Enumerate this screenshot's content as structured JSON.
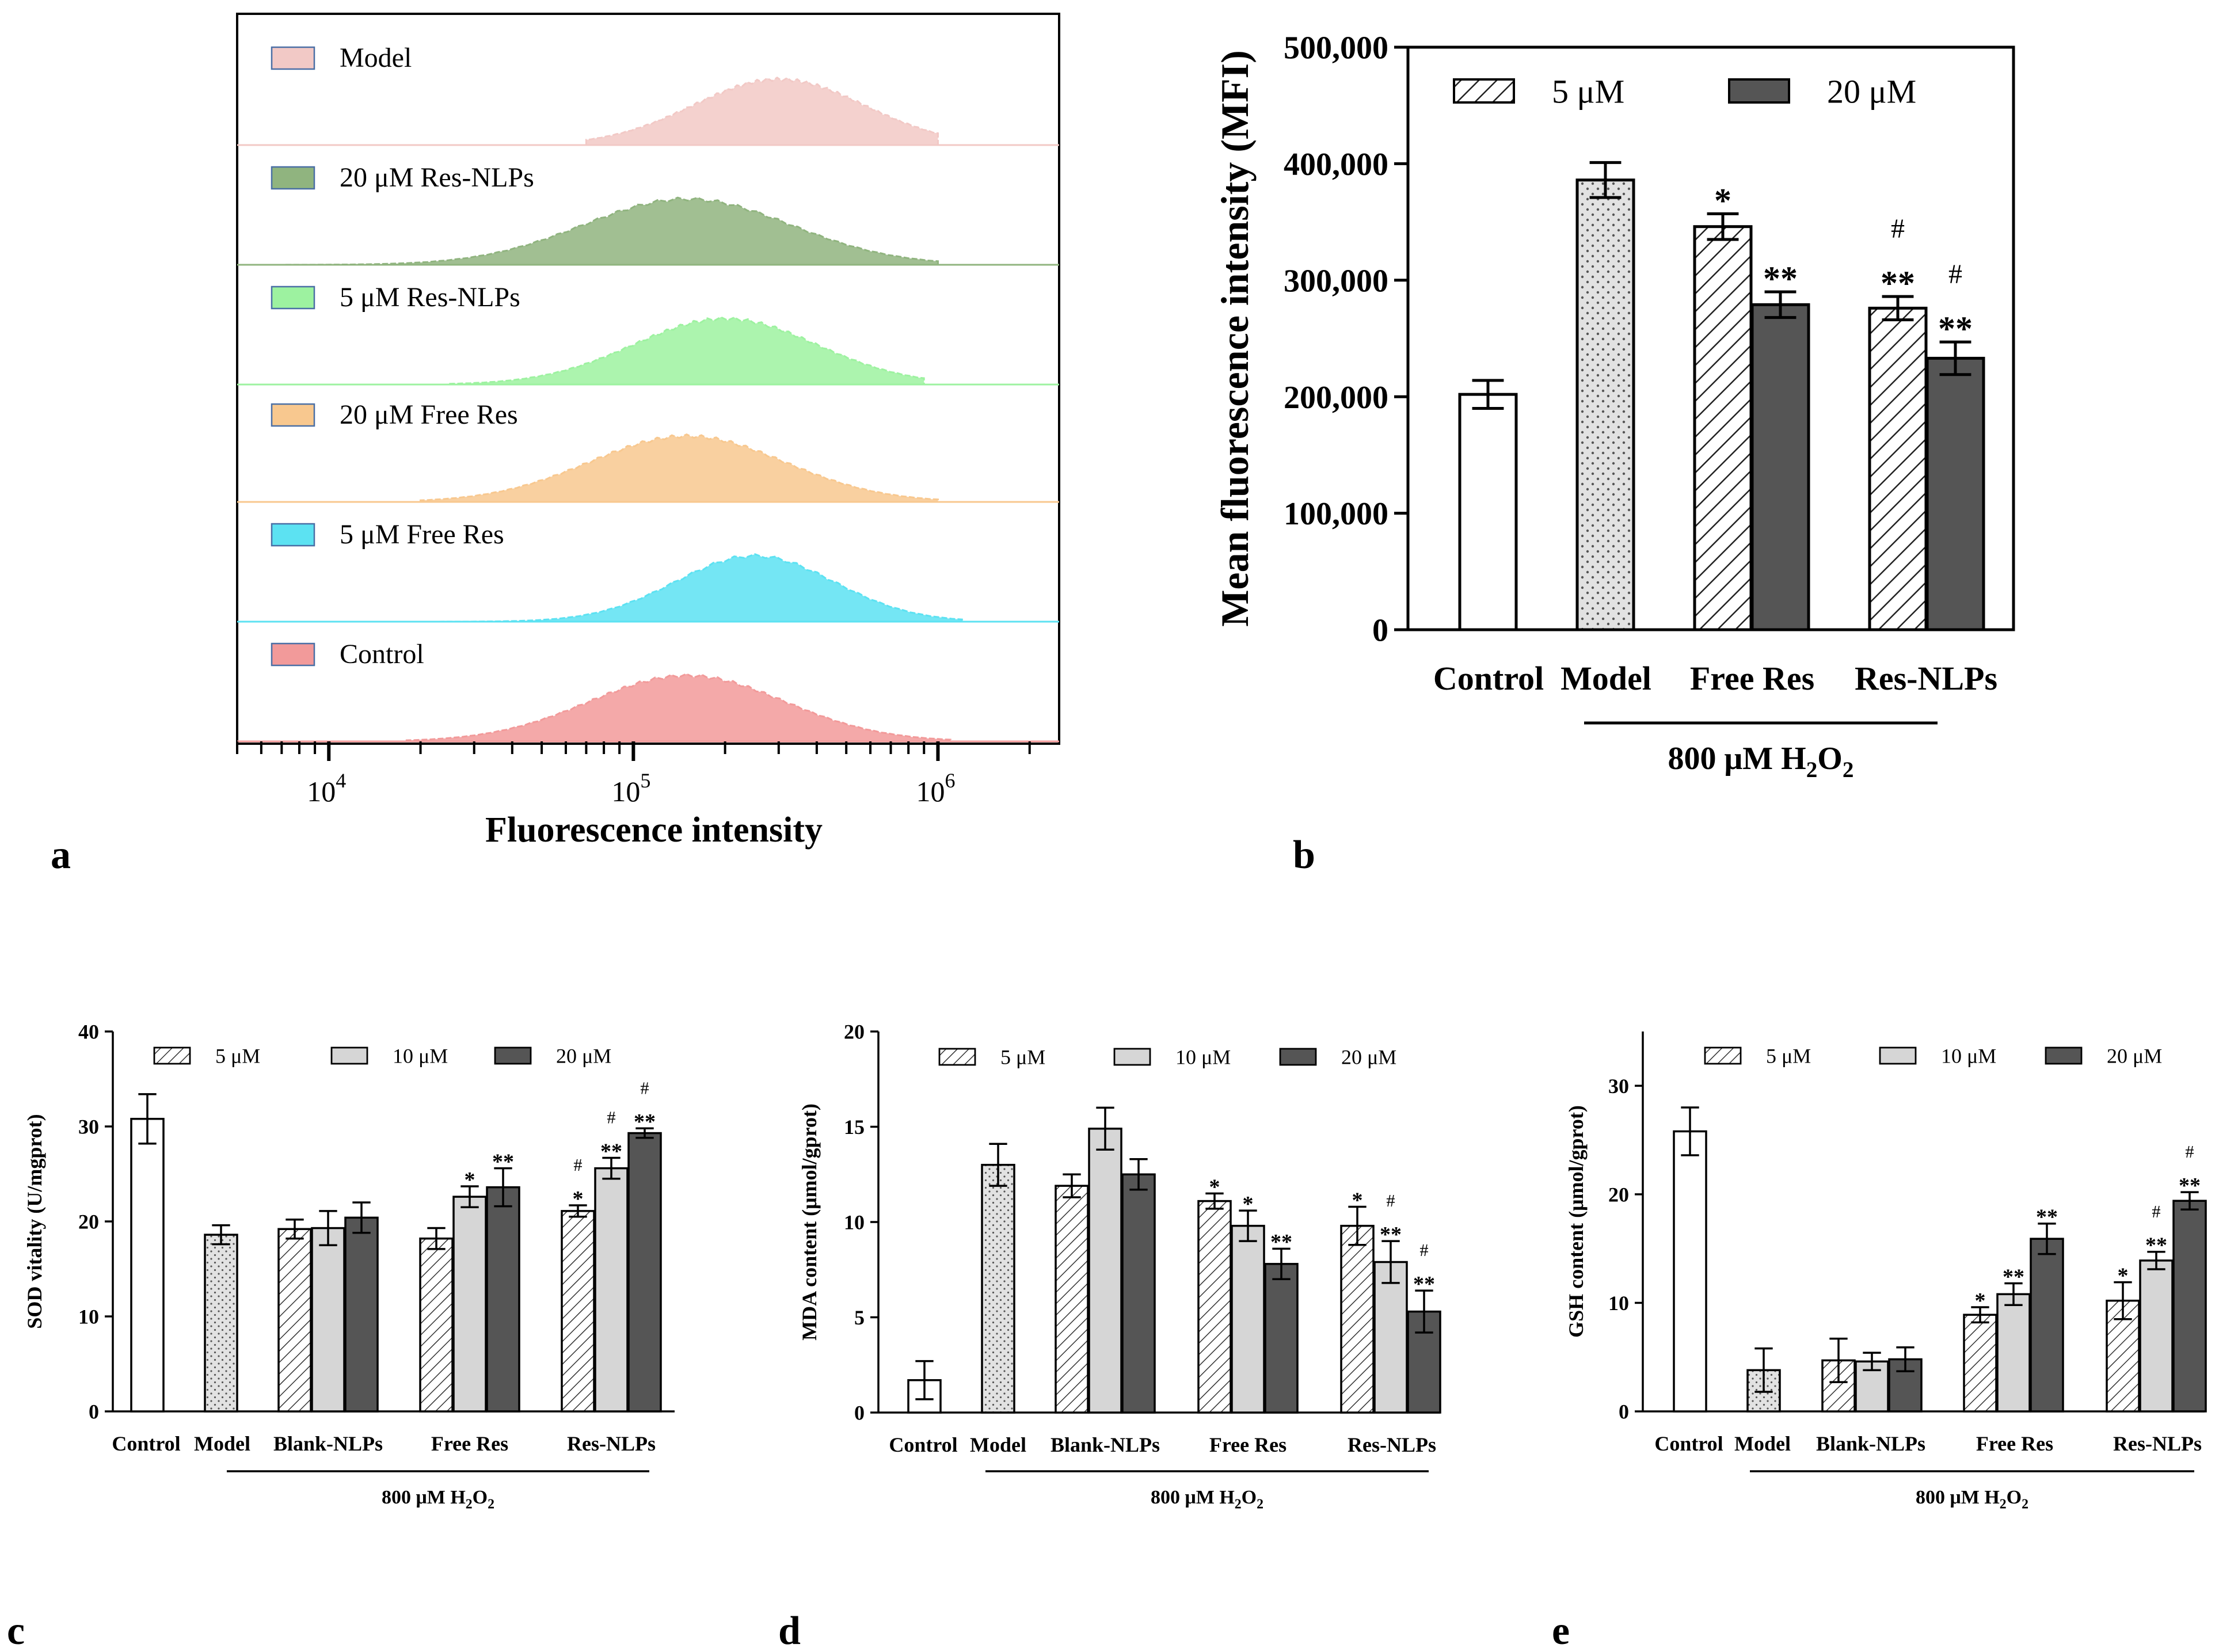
{
  "colors": {
    "hist_model": "#f2c9c6",
    "hist_20_nlp": "#90b47f",
    "hist_5_nlp": "#9df2a0",
    "hist_20_free": "#f8c88f",
    "hist_5_free": "#5ce2f2",
    "hist_control": "#f29a9a",
    "bar_dark": "#555555",
    "bar_light": "#d6d6d6",
    "bar_dotted_bg": "#e2e2e2",
    "axis": "#000000"
  },
  "chart_data": [
    {
      "id": "a",
      "type": "histogram",
      "panel_label": "a",
      "xlabel": "Fluorescence intensity",
      "xscale": "log",
      "xlim": [
        5000,
        2500000
      ],
      "x_ticks": [
        {
          "base": "10",
          "exp": "4",
          "value": 10000
        },
        {
          "base": "10",
          "exp": "5",
          "value": 100000
        },
        {
          "base": "10",
          "exp": "6",
          "value": 1000000
        }
      ],
      "series": [
        {
          "name": "Model",
          "color_key": "hist_model",
          "start": 70000,
          "end": 1000000,
          "peak": 300000,
          "width": 0.28,
          "height": 0.55
        },
        {
          "name": "20 μM Res-NLPs",
          "color_key": "hist_20_nlp",
          "start": 5000,
          "end": 1000000,
          "peak": 150000,
          "width": 0.34,
          "height": 0.55
        },
        {
          "name": "5 μM Res-NLPs",
          "color_key": "hist_5_nlp",
          "start": 25000,
          "end": 900000,
          "peak": 200000,
          "width": 0.3,
          "height": 0.55
        },
        {
          "name": "20 μM Free Res",
          "color_key": "hist_20_free",
          "start": 20000,
          "end": 1000000,
          "peak": 150000,
          "width": 0.32,
          "height": 0.55
        },
        {
          "name": "5 μM Free Res",
          "color_key": "hist_5_free",
          "start": 5000,
          "end": 1200000,
          "peak": 250000,
          "width": 0.26,
          "height": 0.55
        },
        {
          "name": "Control",
          "color_key": "hist_control",
          "start": 18000,
          "end": 1100000,
          "peak": 150000,
          "width": 0.32,
          "height": 0.55
        }
      ]
    },
    {
      "id": "b",
      "type": "bar",
      "panel_label": "b",
      "ylabel": "Mean fluorescence intensity (MFI)",
      "ylim": [
        0,
        500000
      ],
      "yticks": [
        0,
        100000,
        200000,
        300000,
        400000,
        500000
      ],
      "ytick_labels": [
        "0",
        "100,000",
        "200,000",
        "300,000",
        "400,000",
        "500,000"
      ],
      "categories": [
        "Control",
        "Model",
        "Free Res",
        "Res-NLPs"
      ],
      "legend": [
        "5 μM",
        "20 μM"
      ],
      "treatment_label": {
        "prefix": "800 μM H",
        "sub1": "2",
        "mid": "O",
        "sub2": "2"
      },
      "bars": [
        {
          "group": "Control",
          "style": "white",
          "value": 202000,
          "err": 12000,
          "ann": []
        },
        {
          "group": "Model",
          "style": "dotted",
          "value": 386000,
          "err": 15000,
          "ann": []
        },
        {
          "group": "Free Res",
          "series": "5 μM",
          "style": "hatch",
          "value": 346000,
          "err": 11000,
          "ann": [
            "*"
          ]
        },
        {
          "group": "Free Res",
          "series": "20 μM",
          "style": "dark",
          "value": 279000,
          "err": 11000,
          "ann": [
            "**"
          ]
        },
        {
          "group": "Res-NLPs",
          "series": "5 μM",
          "style": "hatch",
          "value": 276000,
          "err": 10000,
          "ann": [
            "**",
            "#"
          ]
        },
        {
          "group": "Res-NLPs",
          "series": "20 μM",
          "style": "dark",
          "value": 233000,
          "err": 14000,
          "ann": [
            "**",
            "#"
          ]
        }
      ]
    },
    {
      "id": "c",
      "type": "bar",
      "panel_label": "c",
      "ylabel": "SOD vitality (U/mgprot)",
      "ylim": [
        0,
        40
      ],
      "yticks": [
        0,
        10,
        20,
        30,
        40
      ],
      "ytick_labels": [
        "0",
        "10",
        "20",
        "30",
        "40"
      ],
      "categories": [
        "Control",
        "Model",
        "Blank-NLPs",
        "Free Res",
        "Res-NLPs"
      ],
      "legend": [
        "5 μM",
        "10 μM",
        "20 μM"
      ],
      "treatment_label": {
        "prefix": "800 μM H",
        "sub1": "2",
        "mid": "O",
        "sub2": "2"
      },
      "bars": [
        {
          "group": "Control",
          "style": "white",
          "value": 30.8,
          "err": 2.6,
          "ann": []
        },
        {
          "group": "Model",
          "style": "dotted",
          "value": 18.6,
          "err": 1.0,
          "ann": []
        },
        {
          "group": "Blank-NLPs",
          "series": "5 μM",
          "style": "hatch",
          "value": 19.2,
          "err": 1.0,
          "ann": []
        },
        {
          "group": "Blank-NLPs",
          "series": "10 μM",
          "style": "light",
          "value": 19.3,
          "err": 1.8,
          "ann": []
        },
        {
          "group": "Blank-NLPs",
          "series": "20 μM",
          "style": "dark",
          "value": 20.4,
          "err": 1.6,
          "ann": []
        },
        {
          "group": "Free Res",
          "series": "5 μM",
          "style": "hatch",
          "value": 18.2,
          "err": 1.1,
          "ann": []
        },
        {
          "group": "Free Res",
          "series": "10 μM",
          "style": "light",
          "value": 22.6,
          "err": 1.1,
          "ann": [
            "*"
          ]
        },
        {
          "group": "Free Res",
          "series": "20 μM",
          "style": "dark",
          "value": 23.6,
          "err": 2.0,
          "ann": [
            "**"
          ]
        },
        {
          "group": "Res-NLPs",
          "series": "5 μM",
          "style": "hatch",
          "value": 21.1,
          "err": 0.6,
          "ann": [
            "*",
            "#"
          ]
        },
        {
          "group": "Res-NLPs",
          "series": "10 μM",
          "style": "light",
          "value": 25.6,
          "err": 1.1,
          "ann": [
            "**",
            "#"
          ]
        },
        {
          "group": "Res-NLPs",
          "series": "20 μM",
          "style": "dark",
          "value": 29.3,
          "err": 0.5,
          "ann": [
            "**",
            "#"
          ]
        }
      ]
    },
    {
      "id": "d",
      "type": "bar",
      "panel_label": "d",
      "ylabel": "MDA content (μmol/gprot)",
      "ylim": [
        0,
        20
      ],
      "yticks": [
        0,
        5,
        10,
        15,
        20
      ],
      "ytick_labels": [
        "0",
        "5",
        "10",
        "15",
        "20"
      ],
      "categories": [
        "Control",
        "Model",
        "Blank-NLPs",
        "Free Res",
        "Res-NLPs"
      ],
      "legend": [
        "5 μM",
        "10 μM",
        "20 μM"
      ],
      "treatment_label": {
        "prefix": "800 μM H",
        "sub1": "2",
        "mid": "O",
        "sub2": "2"
      },
      "bars": [
        {
          "group": "Control",
          "style": "white",
          "value": 1.7,
          "err": 1.0,
          "ann": []
        },
        {
          "group": "Model",
          "style": "dotted",
          "value": 13.0,
          "err": 1.1,
          "ann": []
        },
        {
          "group": "Blank-NLPs",
          "series": "5 μM",
          "style": "hatch",
          "value": 11.9,
          "err": 0.6,
          "ann": []
        },
        {
          "group": "Blank-NLPs",
          "series": "10 μM",
          "style": "light",
          "value": 14.9,
          "err": 1.1,
          "ann": []
        },
        {
          "group": "Blank-NLPs",
          "series": "20 μM",
          "style": "dark",
          "value": 12.5,
          "err": 0.8,
          "ann": []
        },
        {
          "group": "Free Res",
          "series": "5 μM",
          "style": "hatch",
          "value": 11.1,
          "err": 0.4,
          "ann": [
            "*"
          ]
        },
        {
          "group": "Free Res",
          "series": "10 μM",
          "style": "light",
          "value": 9.8,
          "err": 0.8,
          "ann": [
            "*"
          ]
        },
        {
          "group": "Free Res",
          "series": "20 μM",
          "style": "dark",
          "value": 7.8,
          "err": 0.8,
          "ann": [
            "**"
          ]
        },
        {
          "group": "Res-NLPs",
          "series": "5 μM",
          "style": "hatch",
          "value": 9.8,
          "err": 1.0,
          "ann": [
            "*"
          ]
        },
        {
          "group": "Res-NLPs",
          "series": "10 μM",
          "style": "light",
          "value": 7.9,
          "err": 1.1,
          "ann": [
            "**",
            "#"
          ]
        },
        {
          "group": "Res-NLPs",
          "series": "20 μM",
          "style": "dark",
          "value": 5.3,
          "err": 1.1,
          "ann": [
            "**",
            "#"
          ]
        }
      ]
    },
    {
      "id": "e",
      "type": "bar",
      "panel_label": "e",
      "ylabel": "GSH content (μmol/gprot)",
      "ylim": [
        0,
        35
      ],
      "yticks": [
        0,
        10,
        20,
        30
      ],
      "ytick_labels": [
        "0",
        "10",
        "20",
        "30"
      ],
      "categories": [
        "Control",
        "Model",
        "Blank-NLPs",
        "Free Res",
        "Res-NLPs"
      ],
      "legend": [
        "5 μM",
        "10 μM",
        "20 μM"
      ],
      "treatment_label": {
        "prefix": "800 μM H",
        "sub1": "2",
        "mid": "O",
        "sub2": "2"
      },
      "bars": [
        {
          "group": "Control",
          "style": "white",
          "value": 25.8,
          "err": 2.2,
          "ann": []
        },
        {
          "group": "Model",
          "style": "dotted",
          "value": 3.8,
          "err": 2.0,
          "ann": []
        },
        {
          "group": "Blank-NLPs",
          "series": "5 μM",
          "style": "hatch",
          "value": 4.7,
          "err": 2.0,
          "ann": []
        },
        {
          "group": "Blank-NLPs",
          "series": "10 μM",
          "style": "light",
          "value": 4.6,
          "err": 0.8,
          "ann": []
        },
        {
          "group": "Blank-NLPs",
          "series": "20 μM",
          "style": "dark",
          "value": 4.8,
          "err": 1.1,
          "ann": []
        },
        {
          "group": "Free Res",
          "series": "5 μM",
          "style": "hatch",
          "value": 8.9,
          "err": 0.7,
          "ann": [
            "*"
          ]
        },
        {
          "group": "Free Res",
          "series": "10 μM",
          "style": "light",
          "value": 10.8,
          "err": 1.0,
          "ann": [
            "**"
          ]
        },
        {
          "group": "Free Res",
          "series": "20 μM",
          "style": "dark",
          "value": 15.9,
          "err": 1.4,
          "ann": [
            "**"
          ]
        },
        {
          "group": "Res-NLPs",
          "series": "5 μM",
          "style": "hatch",
          "value": 10.2,
          "err": 1.7,
          "ann": [
            "*"
          ]
        },
        {
          "group": "Res-NLPs",
          "series": "10 μM",
          "style": "light",
          "value": 13.9,
          "err": 0.8,
          "ann": [
            "**",
            "#"
          ]
        },
        {
          "group": "Res-NLPs",
          "series": "20 μM",
          "style": "dark",
          "value": 19.4,
          "err": 0.8,
          "ann": [
            "**",
            "#"
          ]
        }
      ]
    }
  ]
}
